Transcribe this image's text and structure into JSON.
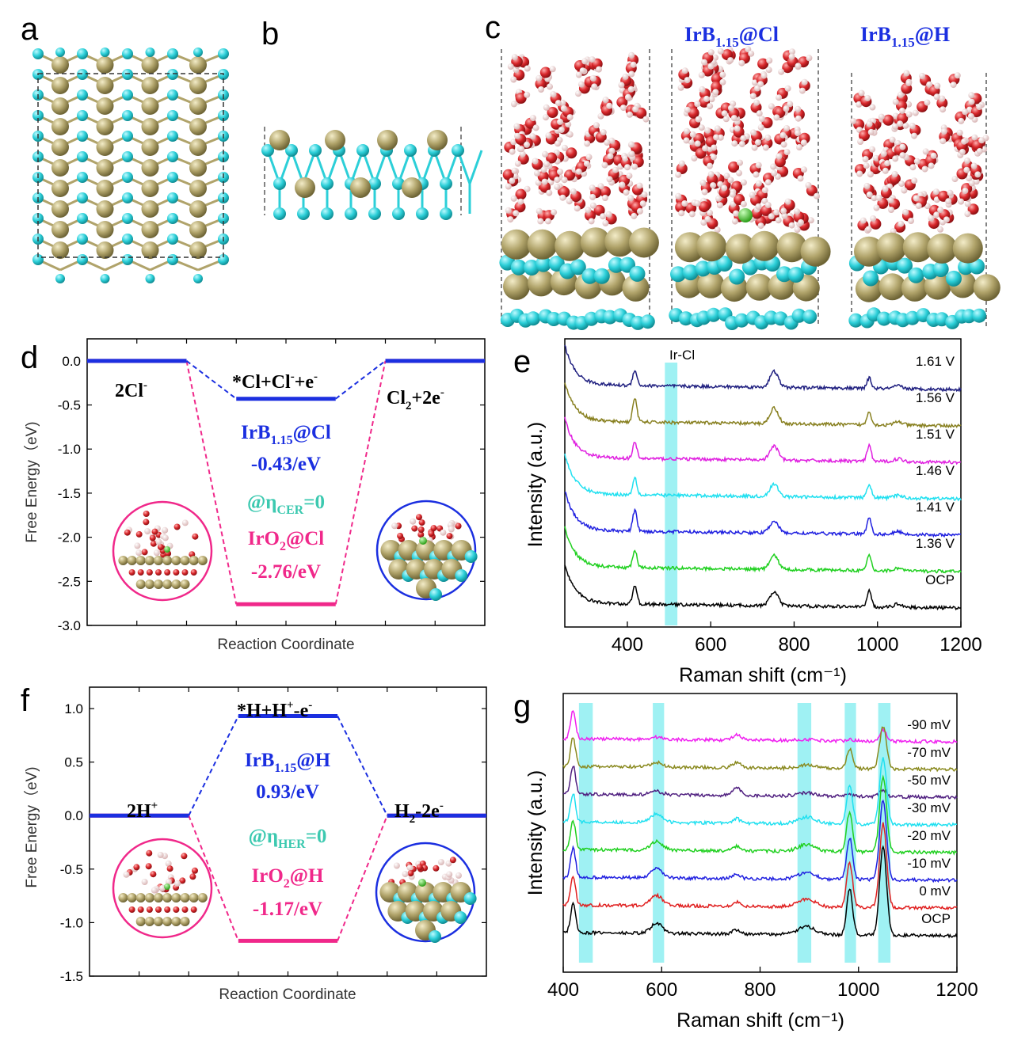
{
  "colors": {
    "cyan": "#2ccfd8",
    "gold": "#b0a36a",
    "oxygen": "#d8262a",
    "hydrogen": "#f0d2d2",
    "chlorine": "#4ad12e",
    "blue": "#1b2fe0",
    "pink": "#f0288a",
    "teal": "#3cc9b0",
    "highlight": "#7fecef"
  },
  "panels": {
    "a": "a",
    "b": "b",
    "c": "c",
    "d": "d",
    "e": "e",
    "f": "f",
    "g": "g"
  },
  "structures": {
    "c_label_cl": {
      "base": "IrB",
      "sub": "1.15",
      "suffix": "@Cl"
    },
    "c_label_h": {
      "base": "IrB",
      "sub": "1.15",
      "suffix": "@H"
    }
  },
  "chart_data": [
    {
      "panel": "d",
      "type": "line",
      "xlabel": "Reaction Coordinate",
      "ylabel": "Free Energy（eV)",
      "ylim": [
        -3.0,
        0.25
      ],
      "yticks": [
        "0.0",
        "-0.5",
        "-1.0",
        "-1.5",
        "-2.0",
        "-2.5",
        "-3.0"
      ],
      "ytick_values": [
        0.0,
        -0.5,
        -1.0,
        -1.5,
        -2.0,
        -2.5,
        -3.0
      ],
      "grid": false,
      "states": [
        {
          "name": "2Cl⁻",
          "label": {
            "base": "2Cl",
            "sup": "-"
          }
        },
        {
          "name": "*Cl+Cl⁻+e⁻",
          "label": {
            "base": "*Cl+Cl",
            "sup": "-",
            "tail": "+e",
            "sup2": "-"
          }
        },
        {
          "name": "Cl₂+2e⁻",
          "label": {
            "base": "Cl",
            "sub": "2",
            "tail": "+2e",
            "sup2": "-"
          }
        }
      ],
      "series": [
        {
          "name": "IrB1.15@Cl",
          "color": "#1b2fe0",
          "values": [
            0.0,
            -0.43,
            0.0
          ]
        },
        {
          "name": "IrO2@Cl",
          "color": "#f0288a",
          "values": [
            0.0,
            -2.76,
            0.0
          ]
        }
      ],
      "annotations": {
        "irb": {
          "base": "IrB",
          "sub": "1.15",
          "suffix": "@Cl"
        },
        "irb_value": "-0.43/eV",
        "condition": {
          "base": "@η",
          "sub": "CER",
          "suffix": "=0"
        },
        "iro": {
          "base": "IrO",
          "sub": "2",
          "suffix": "@Cl"
        },
        "iro_value": "-2.76/eV"
      }
    },
    {
      "panel": "e",
      "type": "line",
      "xlabel": "Raman shift (cm⁻¹)",
      "ylabel": "Intensity (a.u.)",
      "xlim": [
        250,
        1200
      ],
      "xticks": [
        "400",
        "600",
        "800",
        "1000",
        "1200"
      ],
      "xtick_values": [
        400,
        600,
        800,
        1000,
        1200
      ],
      "band_label": "Ir-Cl",
      "bands": [
        [
          490,
          520
        ]
      ],
      "peaks": [
        [
          418,
          1.0,
          5
        ],
        [
          505,
          0.0,
          24
        ],
        [
          752,
          1.0,
          10
        ],
        [
          980,
          1.0,
          5
        ],
        [
          1050,
          0.4,
          10
        ]
      ],
      "series": [
        {
          "name": "1.61 V",
          "label": "1.61 V",
          "color": "#202080",
          "offset": 6,
          "peak_scale": [
            0.9,
            3.0,
            0.9,
            0.6,
            0.4
          ]
        },
        {
          "name": "1.56 V",
          "label": "1.56 V",
          "color": "#888020",
          "offset": 5,
          "peak_scale": [
            1.4,
            4.0,
            0.9,
            0.8,
            0.5
          ]
        },
        {
          "name": "1.51 V",
          "label": "1.51 V",
          "color": "#e020e0",
          "offset": 4,
          "peak_scale": [
            0.9,
            1.8,
            0.8,
            0.9,
            0.4
          ]
        },
        {
          "name": "1.46 V",
          "label": "1.46 V",
          "color": "#20e0f0",
          "offset": 3,
          "peak_scale": [
            1.0,
            0.5,
            0.7,
            0.8,
            0.4
          ]
        },
        {
          "name": "1.41 V",
          "label": "1.41 V",
          "color": "#2020e0",
          "offset": 2,
          "peak_scale": [
            1.2,
            0.3,
            0.7,
            1.0,
            0.4
          ]
        },
        {
          "name": "1.36 V",
          "label": "1.36 V",
          "color": "#20d020",
          "offset": 1,
          "peak_scale": [
            1.0,
            0.2,
            0.8,
            0.9,
            0.4
          ]
        },
        {
          "name": "OCP",
          "label": "OCP",
          "color": "#000000",
          "offset": 0,
          "peak_scale": [
            1.1,
            0.1,
            0.8,
            1.0,
            0.5
          ]
        }
      ]
    },
    {
      "panel": "f",
      "type": "line",
      "xlabel": "Reaction Coordinate",
      "ylabel": "Free Energy（eV)",
      "ylim": [
        -1.5,
        1.2
      ],
      "yticks": [
        "1.0",
        "0.5",
        "0.0",
        "-0.5",
        "-1.0",
        "-1.5"
      ],
      "ytick_values": [
        1.0,
        0.5,
        0.0,
        -0.5,
        -1.0,
        -1.5
      ],
      "grid": false,
      "states": [
        {
          "name": "2H⁺",
          "label": {
            "base": "2H",
            "sup": "+"
          }
        },
        {
          "name": "*H+H⁺-e⁻",
          "label": {
            "base": "*H+H",
            "sup": "+",
            "tail": "-e",
            "sup2": "-"
          }
        },
        {
          "name": "H₂-2e⁻",
          "label": {
            "base": "H",
            "sub": "2",
            "tail": "-2e",
            "sup2": "-"
          }
        }
      ],
      "series": [
        {
          "name": "IrB1.15@H",
          "color": "#1b2fe0",
          "values": [
            0.0,
            0.93,
            0.0
          ]
        },
        {
          "name": "IrO2@H",
          "color": "#f0288a",
          "values": [
            0.0,
            -1.17,
            0.0
          ]
        }
      ],
      "annotations": {
        "irb": {
          "base": "IrB",
          "sub": "1.15",
          "suffix": "@H"
        },
        "irb_value": "0.93/eV",
        "condition": {
          "base": "@η",
          "sub": "HER",
          "suffix": "=0"
        },
        "iro": {
          "base": "IrO",
          "sub": "2",
          "suffix": "@H"
        },
        "iro_value": "-1.17/eV"
      }
    },
    {
      "panel": "g",
      "type": "line",
      "xlabel": "Raman shift (cm⁻¹)",
      "ylabel": "Intensity (a.u.)",
      "xlim": [
        400,
        1200
      ],
      "xticks": [
        "400",
        "600",
        "800",
        "1000",
        "1200"
      ],
      "xtick_values": [
        400,
        600,
        800,
        1000,
        1200
      ],
      "bands": [
        [
          432,
          460
        ],
        [
          582,
          605
        ],
        [
          876,
          904
        ],
        [
          972,
          995
        ],
        [
          1040,
          1065
        ]
      ],
      "peaks": [
        [
          420,
          1.0,
          5
        ],
        [
          590,
          0.5,
          12
        ],
        [
          752,
          0.4,
          8
        ],
        [
          895,
          0.5,
          18
        ],
        [
          982,
          1.0,
          6
        ],
        [
          1050,
          1.0,
          7
        ]
      ],
      "series": [
        {
          "name": "-90 mV",
          "label": "-90 mV",
          "color": "#f020f0",
          "offset": 7,
          "peak_scale": [
            1.3,
            0.2,
            0.6,
            0.1,
            0.1,
            0.5
          ]
        },
        {
          "name": "-70 mV",
          "label": "-70 mV",
          "color": "#8a8a20",
          "offset": 6,
          "peak_scale": [
            1.3,
            0.4,
            0.6,
            0.3,
            0.9,
            1.9
          ]
        },
        {
          "name": "-50 mV",
          "label": "-50 mV",
          "color": "#502080",
          "offset": 5,
          "peak_scale": [
            1.3,
            0.3,
            0.9,
            0.3,
            0.1,
            0.3
          ]
        },
        {
          "name": "-30 mV",
          "label": "-30 mV",
          "color": "#20e0f0",
          "offset": 4,
          "peak_scale": [
            1.3,
            0.8,
            0.5,
            0.6,
            1.7,
            3.0
          ]
        },
        {
          "name": "-20 mV",
          "label": "-20 mV",
          "color": "#20d020",
          "offset": 3,
          "peak_scale": [
            1.3,
            0.8,
            0.5,
            0.6,
            1.8,
            3.4
          ]
        },
        {
          "name": "-10 mV",
          "label": "-10 mV",
          "color": "#2020e0",
          "offset": 2,
          "peak_scale": [
            1.3,
            0.8,
            0.5,
            0.6,
            1.9,
            3.6
          ]
        },
        {
          "name": "0 mV",
          "label": "0 mV",
          "color": "#e02020",
          "offset": 1,
          "peak_scale": [
            1.3,
            0.9,
            0.5,
            0.7,
            2.0,
            3.8
          ]
        },
        {
          "name": "OCP",
          "label": "OCP",
          "color": "#000000",
          "offset": 0,
          "peak_scale": [
            1.3,
            0.9,
            0.5,
            0.7,
            2.1,
            4.0
          ]
        }
      ]
    }
  ]
}
